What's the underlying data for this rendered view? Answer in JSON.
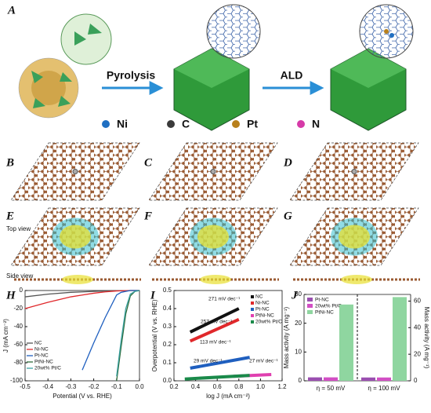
{
  "panel_labels": [
    "A",
    "B",
    "C",
    "D",
    "E",
    "F",
    "G",
    "H",
    "I",
    "J"
  ],
  "process": {
    "step1": "Pyrolysis",
    "step2": "ALD"
  },
  "atom_legend": [
    {
      "symbol": "Ni",
      "color": "#1f6fc2"
    },
    {
      "symbol": "C",
      "color": "#3a3a3a"
    },
    {
      "symbol": "Pt",
      "color": "#b8801c"
    },
    {
      "symbol": "N",
      "color": "#d63aa8"
    }
  ],
  "view_labels": {
    "top": "Top view",
    "side": "Side view"
  },
  "chart_data": [
    {
      "type": "line",
      "xlabel": "Potential (V vs. RHE)",
      "ylabel": "J (mA cm⁻²)",
      "x": [
        -0.5,
        -0.4,
        -0.3,
        -0.25,
        -0.2,
        -0.15,
        -0.1,
        -0.08,
        -0.06,
        -0.04,
        -0.02,
        0
      ],
      "xlim": [
        -0.5,
        0
      ],
      "xticks": [
        -0.5,
        -0.4,
        -0.3,
        -0.2,
        -0.1,
        {
          "value": 0,
          "label": "0.0"
        }
      ],
      "ylim": [
        -100,
        0
      ],
      "yticks": [
        -100,
        -80,
        -60,
        -40,
        -20,
        0
      ],
      "legend": "lower left",
      "series": [
        {
          "name": "NC",
          "color": "#555555",
          "values": [
            -7,
            -4,
            -2,
            -1.5,
            -1,
            -0.5,
            -0.3,
            -0.2,
            -0.1,
            0,
            0,
            0
          ]
        },
        {
          "name": "Ni-NC",
          "color": "#e0282b",
          "values": [
            -20,
            -13,
            -7,
            -5,
            -3,
            -1.5,
            -0.5,
            -0.3,
            -0.2,
            0,
            0,
            0
          ]
        },
        {
          "name": "Pt-NC",
          "color": "#1f5fbf",
          "values": [
            null,
            null,
            null,
            -88,
            -58,
            -30,
            -5,
            -2,
            -1,
            0,
            0,
            0
          ]
        },
        {
          "name": "PtNi-NC",
          "color": "#2e6b3a",
          "values": [
            null,
            null,
            null,
            null,
            null,
            null,
            -100,
            -62,
            -26,
            -6,
            -1,
            0
          ]
        },
        {
          "name": "20wt% Pt/C",
          "color": "#3aa0a0",
          "values": [
            null,
            null,
            null,
            null,
            null,
            null,
            -95,
            -55,
            -20,
            -4,
            -1,
            0
          ]
        }
      ]
    },
    {
      "type": "line",
      "xlabel": "log J (mA cm⁻²)",
      "ylabel": "Overpotential (V vs. RHE)",
      "xlim": [
        0.2,
        1.2
      ],
      "xticks": [
        0.2,
        0.4,
        0.6,
        0.8,
        {
          "value": 1,
          "label": "1.0"
        },
        1.2
      ],
      "ylim": [
        0,
        0.5
      ],
      "yticks": [
        {
          "value": 0,
          "label": "0.0"
        },
        0.1,
        0.2,
        0.3,
        0.4,
        0.5
      ],
      "legend": "upper right",
      "annotations": [
        "271 mV dec⁻¹",
        "257 mV dec⁻¹",
        "113 mV dec⁻¹",
        "29 mV dec⁻¹",
        "27 mV dec⁻¹"
      ],
      "series": [
        {
          "name": "NC",
          "color": "#111111",
          "x": [
            0.35,
            0.8
          ],
          "values": [
            0.27,
            0.4
          ]
        },
        {
          "name": "Ni-NC",
          "color": "#e0282b",
          "x": [
            0.35,
            0.8
          ],
          "values": [
            0.22,
            0.34
          ]
        },
        {
          "name": "Pt-NC",
          "color": "#1f5fbf",
          "x": [
            0.35,
            0.9
          ],
          "values": [
            0.07,
            0.13
          ]
        },
        {
          "name": "PtNi-NC",
          "color": "#e040b0",
          "x": [
            0.75,
            1.1
          ],
          "values": [
            0.025,
            0.035
          ]
        },
        {
          "name": "20wt% Pt/C",
          "color": "#1a8a4a",
          "x": [
            0.3,
            0.9
          ],
          "values": [
            0.01,
            0.03
          ]
        }
      ]
    },
    {
      "type": "bar",
      "ylabel": "Mass activity (A mg⁻¹)",
      "categories": [
        "η = 50 mV"
      ],
      "ylim": [
        0,
        30
      ],
      "yticks": [
        0,
        10,
        20,
        30
      ],
      "legend": "upper left",
      "series": [
        {
          "name": "Pt-NC",
          "color": "#9a4fb0",
          "values": [
            1.2
          ]
        },
        {
          "name": "20wt% Pt/C",
          "color": "#d24fc4",
          "values": [
            1.2
          ]
        },
        {
          "name": "PtNi-NC",
          "color": "#8fd6a0",
          "values": [
            26.5
          ]
        }
      ]
    },
    {
      "type": "bar",
      "y2label": "Mass activity (A mg⁻¹)",
      "categories": [
        "η = 100 mV"
      ],
      "y2lim": [
        0,
        65
      ],
      "y2ticks": [
        0,
        20,
        40,
        60
      ],
      "series": [
        {
          "color": "#9a4fb0",
          "values": [
            2.5
          ],
          "axis": "y2"
        },
        {
          "color": "#d24fc4",
          "values": [
            2.5
          ],
          "axis": "y2"
        },
        {
          "color": "#8fd6a0",
          "values": [
            63
          ],
          "axis": "y2"
        }
      ]
    }
  ]
}
